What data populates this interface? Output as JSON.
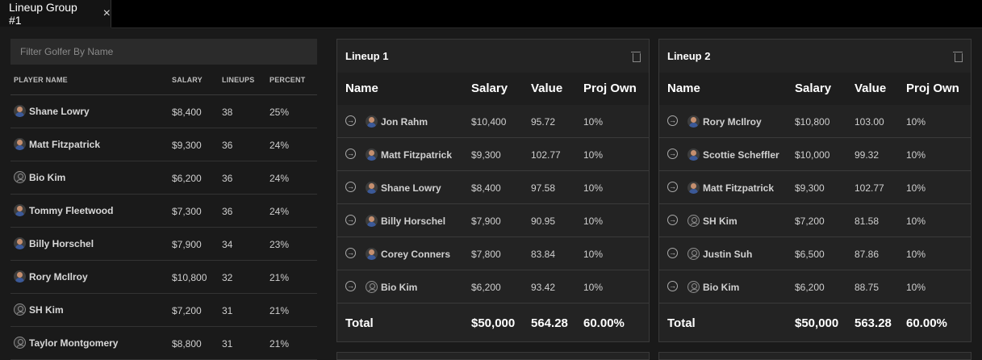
{
  "tab": {
    "label": "Lineup Group #1",
    "close_glyph": "×"
  },
  "filter": {
    "placeholder": "Filter Golfer By Name",
    "value": ""
  },
  "players_table": {
    "headers": {
      "name": "PLAYER NAME",
      "salary": "SALARY",
      "lineups": "LINEUPS",
      "percent": "PERCENT"
    },
    "rows": [
      {
        "name": "Shane Lowry",
        "salary": "$8,400",
        "lineups": "38",
        "percent": "25%",
        "avatar": "photo"
      },
      {
        "name": "Matt Fitzpatrick",
        "salary": "$9,300",
        "lineups": "36",
        "percent": "24%",
        "avatar": "photo"
      },
      {
        "name": "Bio Kim",
        "salary": "$6,200",
        "lineups": "36",
        "percent": "24%",
        "avatar": "blank"
      },
      {
        "name": "Tommy Fleetwood",
        "salary": "$7,300",
        "lineups": "36",
        "percent": "24%",
        "avatar": "photo"
      },
      {
        "name": "Billy Horschel",
        "salary": "$7,900",
        "lineups": "34",
        "percent": "23%",
        "avatar": "photo"
      },
      {
        "name": "Rory McIlroy",
        "salary": "$10,800",
        "lineups": "32",
        "percent": "21%",
        "avatar": "photo"
      },
      {
        "name": "SH Kim",
        "salary": "$7,200",
        "lineups": "31",
        "percent": "21%",
        "avatar": "blank"
      },
      {
        "name": "Taylor Montgomery",
        "salary": "$8,800",
        "lineups": "31",
        "percent": "21%",
        "avatar": "blank"
      }
    ]
  },
  "lineups": [
    {
      "title": "Lineup 1",
      "headers": {
        "name": "Name",
        "salary": "Salary",
        "value": "Value",
        "own": "Proj Own"
      },
      "rows": [
        {
          "name": "Jon Rahm",
          "salary": "$10,400",
          "value": "95.72",
          "own": "10%",
          "avatar": "photo"
        },
        {
          "name": "Matt Fitzpatrick",
          "salary": "$9,300",
          "value": "102.77",
          "own": "10%",
          "avatar": "photo"
        },
        {
          "name": "Shane Lowry",
          "salary": "$8,400",
          "value": "97.58",
          "own": "10%",
          "avatar": "photo"
        },
        {
          "name": "Billy Horschel",
          "salary": "$7,900",
          "value": "90.95",
          "own": "10%",
          "avatar": "photo"
        },
        {
          "name": "Corey Conners",
          "salary": "$7,800",
          "value": "83.84",
          "own": "10%",
          "avatar": "photo"
        },
        {
          "name": "Bio Kim",
          "salary": "$6,200",
          "value": "93.42",
          "own": "10%",
          "avatar": "blank"
        }
      ],
      "total": {
        "label": "Total",
        "salary": "$50,000",
        "value": "564.28",
        "own": "60.00%"
      }
    },
    {
      "title": "Lineup 2",
      "headers": {
        "name": "Name",
        "salary": "Salary",
        "value": "Value",
        "own": "Proj Own"
      },
      "rows": [
        {
          "name": "Rory McIlroy",
          "salary": "$10,800",
          "value": "103.00",
          "own": "10%",
          "avatar": "photo"
        },
        {
          "name": "Scottie Scheffler",
          "salary": "$10,000",
          "value": "99.32",
          "own": "10%",
          "avatar": "photo"
        },
        {
          "name": "Matt Fitzpatrick",
          "salary": "$9,300",
          "value": "102.77",
          "own": "10%",
          "avatar": "photo"
        },
        {
          "name": "SH Kim",
          "salary": "$7,200",
          "value": "81.58",
          "own": "10%",
          "avatar": "blank"
        },
        {
          "name": "Justin Suh",
          "salary": "$6,500",
          "value": "87.86",
          "own": "10%",
          "avatar": "blank"
        },
        {
          "name": "Bio Kim",
          "salary": "$6,200",
          "value": "88.75",
          "own": "10%",
          "avatar": "blank"
        }
      ],
      "total": {
        "label": "Total",
        "salary": "$50,000",
        "value": "563.28",
        "own": "60.00%"
      }
    }
  ],
  "icons": {
    "row_action": "arrow-circle-right-icon",
    "delete": "trash-icon"
  }
}
